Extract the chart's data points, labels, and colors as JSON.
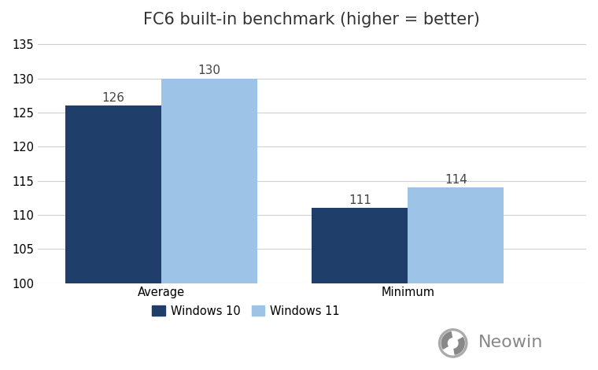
{
  "title": "FC6 built-in benchmark (higher = better)",
  "categories": [
    "Average",
    "Minimum"
  ],
  "win10_values": [
    126,
    111
  ],
  "win11_values": [
    130,
    114
  ],
  "win10_color": "#1F3F6A",
  "win11_color": "#9DC3E6",
  "bar_width": 0.35,
  "ylim": [
    100,
    136
  ],
  "yticks": [
    100,
    105,
    110,
    115,
    120,
    125,
    130,
    135
  ],
  "group_centers": [
    0.35,
    1.25
  ],
  "xlim": [
    -0.1,
    1.9
  ],
  "legend_labels": [
    "Windows 10",
    "Windows 11"
  ],
  "background_color": "#ffffff",
  "title_fontsize": 15,
  "tick_fontsize": 10.5,
  "legend_fontsize": 10.5,
  "annotation_fontsize": 11,
  "neowin_text": "Neowin",
  "neowin_fontsize": 16,
  "neowin_color": "#888888",
  "grid_color": "#d0d0d0"
}
